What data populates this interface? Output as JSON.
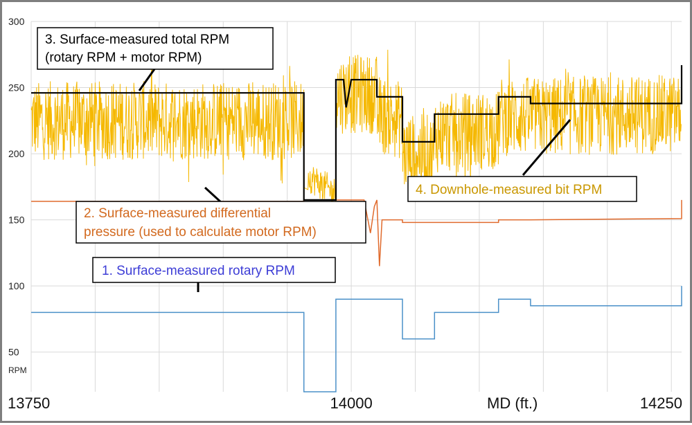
{
  "chart_data": {
    "type": "line",
    "xlabel": "MD (ft.)",
    "ylabel": "RPM",
    "xlim": [
      13750,
      14260
    ],
    "ylim": [
      20,
      300
    ],
    "y_ticks": [
      50,
      100,
      150,
      200,
      250,
      300
    ],
    "x_ticks": [
      13750,
      14000,
      14250
    ],
    "grid": true,
    "series": [
      {
        "name": "1. Surface-measured rotary RPM",
        "color": "#4a90c8",
        "points": [
          [
            13750,
            80
          ],
          [
            13963,
            80
          ],
          [
            13963,
            20
          ],
          [
            13988,
            20
          ],
          [
            13988,
            90
          ],
          [
            14040,
            90
          ],
          [
            14040,
            60
          ],
          [
            14065,
            60
          ],
          [
            14065,
            80
          ],
          [
            14115,
            80
          ],
          [
            14115,
            90
          ],
          [
            14140,
            90
          ],
          [
            14140,
            85
          ],
          [
            14258,
            85
          ],
          [
            14258,
            100
          ]
        ]
      },
      {
        "name": "2. Surface-measured differential pressure (used to calculate motor RPM)",
        "color": "#e06a2c",
        "points": [
          [
            13750,
            164
          ],
          [
            13963,
            164
          ],
          [
            13963,
            165
          ],
          [
            14010,
            165
          ],
          [
            14015,
            140
          ],
          [
            14018,
            160
          ],
          [
            14020,
            165
          ],
          [
            14022,
            115
          ],
          [
            14024,
            150
          ],
          [
            14040,
            150
          ],
          [
            14040,
            148
          ],
          [
            14115,
            148
          ],
          [
            14115,
            150
          ],
          [
            14140,
            150
          ],
          [
            14258,
            151
          ],
          [
            14258,
            165
          ]
        ]
      },
      {
        "name": "3. Surface-measured total RPM (rotary RPM + motor RPM)",
        "color": "#000000",
        "points": [
          [
            13750,
            246
          ],
          [
            13963,
            246
          ],
          [
            13963,
            165
          ],
          [
            13988,
            165
          ],
          [
            13988,
            256
          ],
          [
            13994,
            256
          ],
          [
            13996,
            235
          ],
          [
            14000,
            256
          ],
          [
            14020,
            256
          ],
          [
            14020,
            243
          ],
          [
            14040,
            243
          ],
          [
            14040,
            209
          ],
          [
            14065,
            209
          ],
          [
            14065,
            230
          ],
          [
            14115,
            230
          ],
          [
            14115,
            243
          ],
          [
            14140,
            243
          ],
          [
            14140,
            238
          ],
          [
            14258,
            238
          ],
          [
            14258,
            267
          ]
        ]
      },
      {
        "name": "4. Downhole-measured bit RPM",
        "color": "#f5b800",
        "base_points": [
          [
            13750,
            225
          ],
          [
            13963,
            225
          ],
          [
            13963,
            185
          ],
          [
            13988,
            170
          ],
          [
            13988,
            245
          ],
          [
            14020,
            245
          ],
          [
            14020,
            230
          ],
          [
            14040,
            225
          ],
          [
            14040,
            200
          ],
          [
            14065,
            200
          ],
          [
            14065,
            215
          ],
          [
            14115,
            218
          ],
          [
            14115,
            228
          ],
          [
            14140,
            228
          ],
          [
            14140,
            228
          ],
          [
            14258,
            230
          ]
        ],
        "noise_amplitude": 30
      }
    ],
    "annotations": [
      {
        "line1": "3. Surface-measured total RPM",
        "line2": "(rotary RPM + motor RPM)",
        "color": "#000000"
      },
      {
        "line1": "2. Surface-measured differential",
        "line2": "pressure (used to calculate motor RPM)",
        "color": "#d2691e"
      },
      {
        "line1": "4. Downhole-measured bit RPM",
        "line2": "",
        "color": "#c99700"
      },
      {
        "line1": "1. Surface-measured rotary RPM",
        "line2": "",
        "color": "#3d3dd6"
      }
    ]
  }
}
